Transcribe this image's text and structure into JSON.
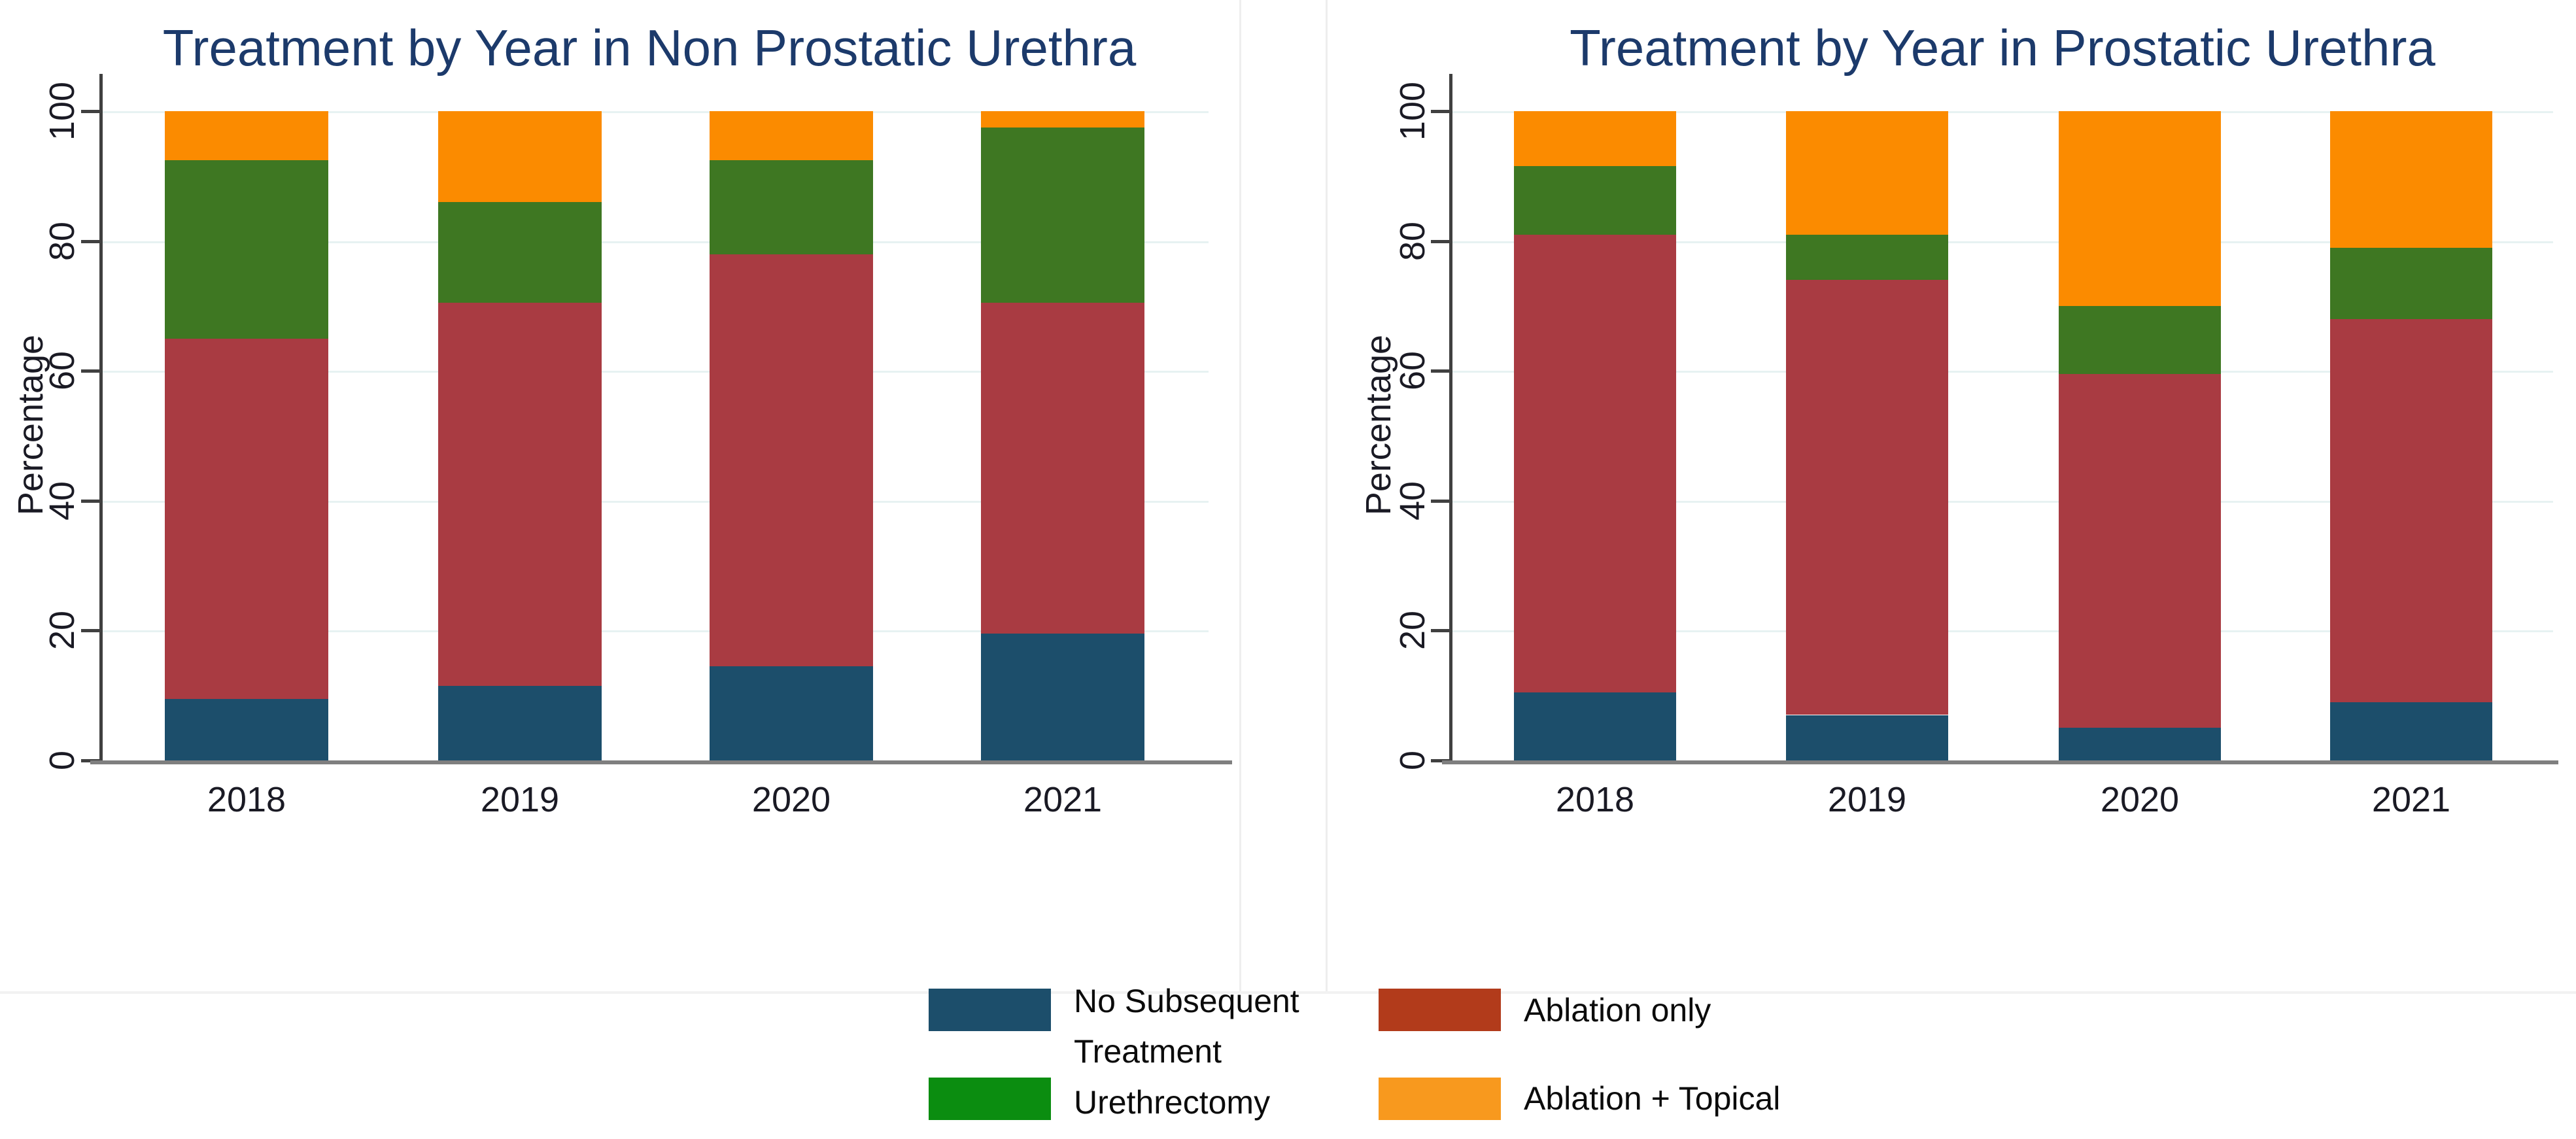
{
  "colors": {
    "title_navy": "#1c3a6b",
    "axis_text": "#1a1a24",
    "gridline": "#e7f2f2",
    "axis_line": "#404040",
    "baseline_gray": "#7f7f7f",
    "bar_blue": "#1c4e6b",
    "bar_red": "#a93b42",
    "bar_green": "#3e7722",
    "bar_orange": "#fb8b00",
    "legend_green": "#0b8d10",
    "legend_red_brown": "#b23b1b",
    "legend_orange": "#f8991e"
  },
  "legend": {
    "items": [
      {
        "series": "No Subsequent Treatment",
        "swatch_color": "#1c4e6b",
        "lines": [
          "No Subsequent",
          "Treatment"
        ]
      },
      {
        "series": "Urethrectomy",
        "swatch_color": "#0b8d10",
        "lines": [
          "Urethrectomy"
        ]
      },
      {
        "series": "Ablation only",
        "swatch_color": "#b23b1b",
        "lines": [
          "Ablation only"
        ]
      },
      {
        "series": "Ablation + Topical",
        "swatch_color": "#f8991e",
        "lines": [
          "Ablation + Topical"
        ]
      }
    ]
  },
  "chart_data": [
    {
      "type": "bar",
      "stacked": true,
      "title": "Treatment by Year in Non Prostatic Urethra",
      "xlabel": "",
      "ylabel": "Percentage",
      "ylim": [
        0,
        100
      ],
      "yticks": [
        0,
        20,
        40,
        60,
        80,
        100
      ],
      "grid": true,
      "legend_position": "bottom-center-shared",
      "categories": [
        "2018",
        "2019",
        "2020",
        "2021"
      ],
      "series": [
        {
          "name": "No Subsequent Treatment",
          "color": "#1c4e6b",
          "values": [
            9.5,
            11.5,
            14.5,
            19.5
          ]
        },
        {
          "name": "Ablation only",
          "color": "#a93b42",
          "values": [
            55.5,
            59,
            63.5,
            51
          ]
        },
        {
          "name": "Urethrectomy",
          "color": "#3e7722",
          "values": [
            27.5,
            15.5,
            14.5,
            27
          ]
        },
        {
          "name": "Ablation + Topical",
          "color": "#fb8b00",
          "values": [
            7.5,
            14,
            7.5,
            2.5
          ]
        }
      ]
    },
    {
      "type": "bar",
      "stacked": true,
      "title": "Treatment by Year in Prostatic Urethra",
      "xlabel": "",
      "ylabel": "Percentage",
      "ylim": [
        0,
        100
      ],
      "yticks": [
        0,
        20,
        40,
        60,
        80,
        100
      ],
      "grid": true,
      "legend_position": "bottom-center-shared",
      "categories": [
        "2018",
        "2019",
        "2020",
        "2021"
      ],
      "series": [
        {
          "name": "No Subsequent Treatment",
          "color": "#1c4e6b",
          "values": [
            10.5,
            7,
            5,
            9
          ]
        },
        {
          "name": "Ablation only",
          "color": "#a93b42",
          "values": [
            70.5,
            67,
            54.5,
            59
          ]
        },
        {
          "name": "Urethrectomy",
          "color": "#3e7722",
          "values": [
            10.5,
            7,
            10.5,
            11
          ]
        },
        {
          "name": "Ablation + Topical",
          "color": "#fb8b00",
          "values": [
            8.5,
            19,
            30,
            21
          ]
        }
      ]
    }
  ]
}
